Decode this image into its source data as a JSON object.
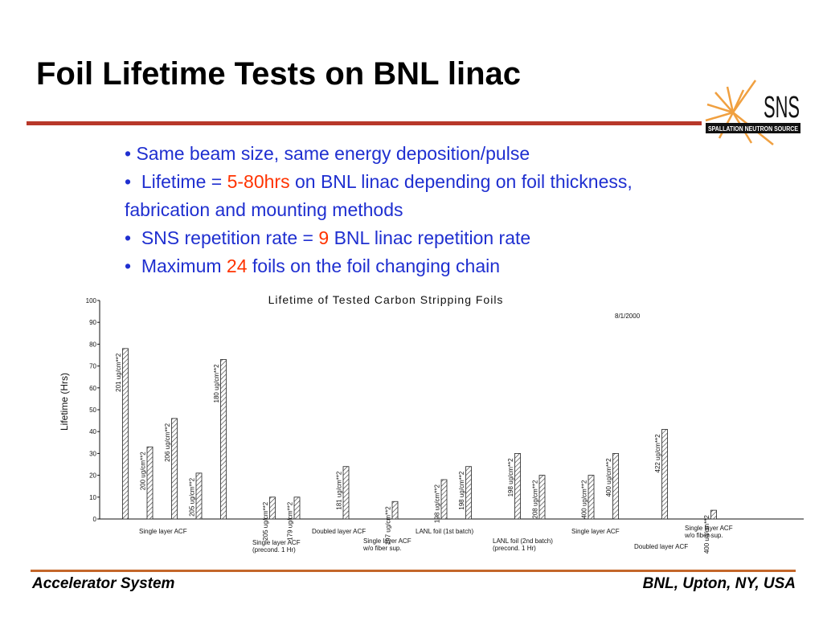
{
  "header": {
    "title": "Foil Lifetime Tests on BNL linac"
  },
  "logo": {
    "name": "SNS",
    "subtitle": "SPALLATION NEUTRON SOURCE"
  },
  "bullets": [
    [
      "Same beam size, same energy deposition/pulse"
    ],
    [
      "Lifetime = ",
      "5-80hrs",
      " on BNL linac depending on foil thickness, fabrication and mounting methods"
    ],
    [
      "SNS repetition rate = ",
      "9",
      " BNL linac repetition rate"
    ],
    [
      "Maximum ",
      "24",
      " foils on the foil changing chain"
    ]
  ],
  "footer": {
    "left": "Accelerator System",
    "right": "BNL, Upton, NY, USA"
  },
  "chart_data": {
    "type": "bar",
    "title": "Lifetime of Tested Carbon Stripping Foils",
    "date": "8/1/2000",
    "y_label": "Lifetime (Hrs)",
    "categories": [
      "201 ug/cm**2",
      "200 ug/cm**2",
      "206 ug/cm**2",
      "205 ug/cm**2",
      "180 ug/cm**2",
      null,
      "205 ug/cm**2",
      "179 ug/cm**2",
      null,
      "181 ug/cm**2",
      null,
      "197 ug/cm**2",
      null,
      "198 ug/cm**2",
      "198 ug/cm**2",
      null,
      "198 ug/cm**2",
      "208 ug/cm**2",
      null,
      "400 ug/cm**2",
      "400 ug/cm**2",
      null,
      "422 ug/cm**2",
      null,
      "400 ug/cm**2"
    ],
    "values": [
      78,
      33,
      46,
      21,
      73,
      null,
      10,
      10,
      null,
      24,
      null,
      8,
      null,
      18,
      24,
      null,
      30,
      20,
      null,
      20,
      30,
      null,
      41,
      null,
      4
    ],
    "ylim": [
      0,
      100
    ],
    "yticks": [
      0,
      10,
      20,
      30,
      40,
      50,
      60,
      70,
      80,
      90,
      100
    ],
    "annotations": [
      [
        "Single layer ACF"
      ],
      [
        "Single layer ACF",
        "(precond. 1 Hr)"
      ],
      [
        "Doubled layer ACF"
      ],
      [
        "Single layer ACF",
        "w/o fiber sup."
      ],
      [
        "LANL foil (1st batch)"
      ],
      [
        "LANL foil (2nd batch)",
        "(precond. 1 Hr)"
      ],
      [
        "Single layer ACF"
      ],
      [
        "Doubled layer ACF"
      ],
      [
        "Single layer ACF",
        "w/o fiber sup."
      ]
    ]
  }
}
